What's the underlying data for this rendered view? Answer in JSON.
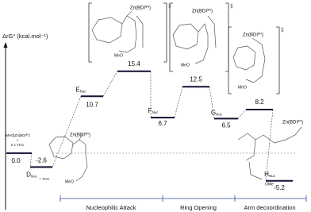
{
  "chart_data": {
    "type": "energy_profile",
    "y_label": "ΔrG° (kcal.mol⁻¹)",
    "ylim": [
      -8,
      20
    ],
    "color": "#111133",
    "categories": [
      null,
      "D",
      "E",
      null,
      "F",
      null,
      "G",
      null,
      "H"
    ],
    "category_subscripts": [
      null,
      "Nuc",
      "Nuc",
      null,
      "Nuc",
      null,
      "Nuc",
      null,
      "Nuc"
    ],
    "values": [
      0,
      -2.6,
      10.7,
      15.4,
      6.7,
      12.5,
      6.5,
      8.2,
      -5.2
    ],
    "value_labels": [
      "0.0",
      "-2.6",
      "10.7",
      "15.4",
      "6.7",
      "12.5",
      "6.5",
      "8.2",
      "-5.2"
    ],
    "sections": [
      "Nucleophilic Attack",
      "Ring Opening",
      "Arm decoordination"
    ],
    "start_label": [
      "[MeO]Zn(BDIⁱᴾʳ)",
      "+",
      "2 x TCC"
    ],
    "d_note": "+ TCC",
    "transition_mark": "‡",
    "structure_labels": [
      "Zn(BDIⁱᴾʳ)",
      "Zn(BDIⁱᴾʳ)",
      "Zn(BDIⁱᴾʳ)",
      "Zn(BDIⁱᴾʳ)",
      "Zn(BDIⁱᴾʳ)"
    ],
    "methoxy_labels": [
      "MeO",
      "MeO",
      "MeO",
      "MeO",
      "OMe"
    ]
  }
}
